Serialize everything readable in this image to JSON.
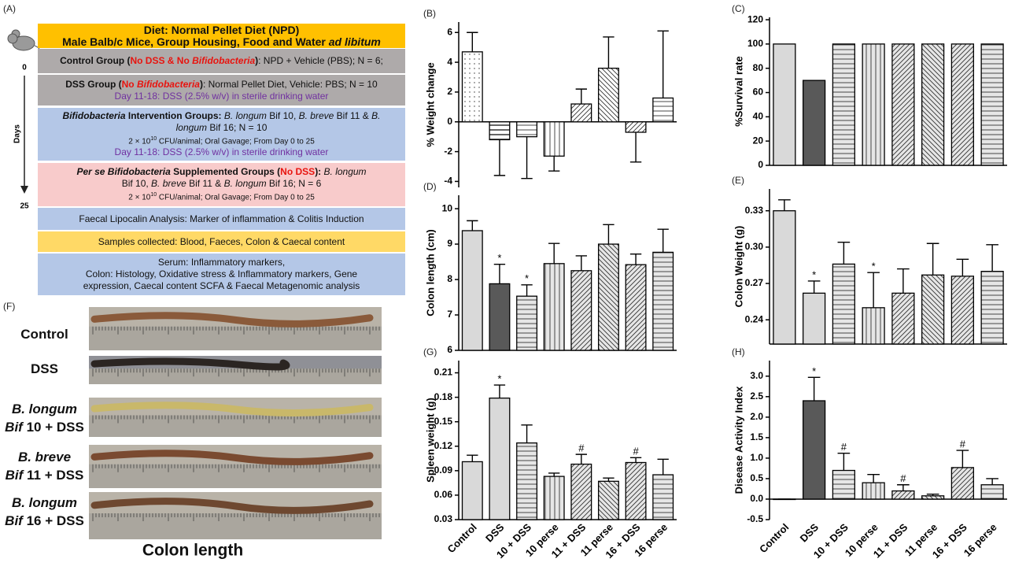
{
  "panel_a": {
    "label": "(A)",
    "timeline": {
      "start": "0",
      "axis": "Days",
      "end": "25"
    },
    "boxes": [
      {
        "color": "#ffc000",
        "lines": [
          [
            {
              "text": "Diet: Normal Pellet Diet (NPD)",
              "style": "b"
            }
          ],
          [
            {
              "text": "Male Balb/c Mice, Group Housing, Food and Water ",
              "style": "b"
            },
            {
              "text": "ad libitum",
              "style": "bi"
            }
          ]
        ]
      },
      {
        "color": "#aeaaaa",
        "lines": [
          [
            {
              "text": "Control Group (",
              "style": "b"
            },
            {
              "text": "No DSS & No ",
              "style": "red"
            },
            {
              "text": "Bifidobacteria",
              "style": "red i"
            },
            {
              "text": ")",
              "style": "b"
            },
            ": NPD + Vehicle (PBS); N = 6;"
          ]
        ]
      },
      {
        "color": "#aeaaaa",
        "lines": [
          [
            {
              "text": "DSS Group (",
              "style": "b"
            },
            {
              "text": "No ",
              "style": "red"
            },
            {
              "text": "Bifidobacteria",
              "style": "red i"
            },
            {
              "text": ")",
              "style": "b"
            },
            ": Normal Pellet Diet, Vehicle: PBS; N = 10"
          ],
          [
            {
              "text": "Day 11-18: DSS (2.5% w/v) in sterile drinking water",
              "style": "purple"
            }
          ]
        ]
      },
      {
        "color": "#b4c7e7",
        "lines": [
          [
            {
              "text": "Bifidobacteria",
              "style": "bi"
            },
            {
              "text": " Intervention Groups: ",
              "style": "b"
            },
            {
              "text": "B. longum",
              "style": "i"
            },
            " Bif 10, ",
            {
              "text": "B. breve",
              "style": "i"
            },
            " Bif 11 & ",
            {
              "text": "B.",
              "style": "i"
            }
          ],
          [
            {
              "text": "longum",
              "style": "i"
            },
            " Bif 16; N = 10"
          ],
          [
            "2 × 10",
            {
              "text": "10",
              "style": "sup"
            },
            " CFU/animal; Oral Gavage; From Day 0 to 25"
          ],
          [
            {
              "text": "Day 11-18: DSS (2.5% w/v) in sterile drinking water",
              "style": "purple"
            }
          ]
        ]
      },
      {
        "color": "#f8cbcb",
        "lines": [
          [
            {
              "text": "Per se Bifidobacteria",
              "style": "bi"
            },
            {
              "text": " Supplemented Groups (",
              "style": "b"
            },
            {
              "text": "No DSS",
              "style": "red"
            },
            {
              "text": "): ",
              "style": "b"
            },
            {
              "text": "B. longum",
              "style": "i"
            }
          ],
          [
            "Bif 10, ",
            {
              "text": "B. breve",
              "style": "i"
            },
            " Bif 11 & ",
            {
              "text": "B. longum",
              "style": "i"
            },
            " Bif 16; N = 6"
          ],
          [
            "2 × 10",
            {
              "text": "10",
              "style": "sup"
            },
            " CFU/animal; Oral Gavage; From Day 0 to 25"
          ]
        ]
      },
      {
        "color": "#b4c7e7",
        "lines": [
          [
            "Faecal Lipocalin Analysis: Marker of inflammation & Colitis Induction"
          ]
        ]
      },
      {
        "color": "#ffd966",
        "lines": [
          [
            "Samples collected: Blood, Faeces, Colon & Caecal content"
          ]
        ]
      },
      {
        "color": "#b4c7e7",
        "lines": [
          [
            "Serum: Inflammatory markers,"
          ],
          [
            "Colon: Histology, Oxidative stress & Inflammatory markers, Gene"
          ],
          [
            "expression, Caecal content SCFA & Faecal Metagenomic analysis"
          ]
        ]
      }
    ]
  },
  "panel_f": {
    "label": "(F)",
    "caption": "Colon length",
    "rows": [
      [
        [
          "Control"
        ]
      ],
      [
        [
          "DSS"
        ]
      ],
      [
        [
          {
            "text": "B. longum",
            "style": "i"
          }
        ],
        [
          {
            "text": "Bif",
            "style": "i"
          },
          " 10 + DSS"
        ]
      ],
      [
        [
          {
            "text": "B. breve",
            "style": "i"
          }
        ],
        [
          {
            "text": "Bif",
            "style": "i"
          },
          " 11 + DSS"
        ]
      ],
      [
        [
          {
            "text": "B. longum",
            "style": "i"
          }
        ],
        [
          {
            "text": "Bif",
            "style": "i"
          },
          " 16 + DSS"
        ]
      ]
    ]
  },
  "chart_data": [
    {
      "type": "bar",
      "label": "(B)",
      "y_label": "% Weight change",
      "ylim": [
        -4.4,
        6.7
      ],
      "yticks": [
        -4,
        -2,
        0,
        2,
        4,
        6
      ],
      "values": [
        4.7,
        -1.2,
        -1.0,
        -2.3,
        1.2,
        3.6,
        -0.7,
        1.6
      ],
      "errors": [
        1.3,
        2.4,
        2.8,
        1.0,
        1.0,
        2.1,
        2.0,
        4.5
      ],
      "colors": [
        "#ffffff",
        "#ffffff",
        "#ffffff",
        "#ffffff",
        "#ffffff",
        "#ffffff",
        "#ffffff",
        "#ffffff"
      ]
    },
    {
      "type": "bar",
      "label": "(C)",
      "y_label": "%Survival rate",
      "ylim": [
        0,
        122
      ],
      "yticks": [
        0,
        20,
        40,
        60,
        80,
        100,
        120
      ],
      "values": [
        100,
        70,
        100,
        100,
        100,
        100,
        100,
        100
      ],
      "colors": [
        "#d9d9d9",
        "#595959",
        "#e6e6e6",
        "#e6e6e6",
        "#e6e6e6",
        "#e6e6e6",
        "#e6e6e6",
        "#e6e6e6"
      ]
    },
    {
      "type": "bar",
      "label": "(D)",
      "y_label": "Colon length (cm)",
      "ylim": [
        6,
        10.38
      ],
      "yticks": [
        6,
        7,
        8,
        9,
        10
      ],
      "values": [
        9.38,
        7.88,
        7.53,
        8.45,
        8.25,
        9.0,
        8.42,
        8.77
      ],
      "errors": [
        0.28,
        0.55,
        0.32,
        0.57,
        0.42,
        0.55,
        0.3,
        0.65
      ],
      "markers": [
        null,
        "*",
        "*",
        null,
        null,
        null,
        null,
        null
      ],
      "colors": [
        "#d9d9d9",
        "#595959",
        "#e6e6e6",
        "#e6e6e6",
        "#e6e6e6",
        "#e6e6e6",
        "#e6e6e6",
        "#e6e6e6"
      ]
    },
    {
      "type": "bar",
      "label": "(E)",
      "y_label": "Colon Weight (g)",
      "ylim": [
        0.22,
        0.348
      ],
      "yticks": [
        0.24,
        0.27,
        {
          "value": 0.3,
          "label": "0.30"
        },
        0.33
      ],
      "values": [
        0.33,
        0.262,
        0.286,
        0.25,
        0.262,
        0.277,
        0.276,
        0.28
      ],
      "errors": [
        0.009,
        0.01,
        0.018,
        0.029,
        0.02,
        0.026,
        0.014,
        0.022
      ],
      "markers": [
        null,
        "*",
        null,
        "*",
        null,
        null,
        null,
        null
      ],
      "colors": [
        "#d9d9d9",
        "#d9d9d9",
        "#e6e6e6",
        "#e6e6e6",
        "#e6e6e6",
        "#e6e6e6",
        "#e6e6e6",
        "#e6e6e6"
      ]
    },
    {
      "type": "bar",
      "label": "(G)",
      "y_label": "Spleen weight (g)",
      "ylim": [
        0.03,
        0.225
      ],
      "yticks": [
        0.03,
        0.06,
        0.09,
        0.12,
        0.15,
        0.18,
        0.21
      ],
      "categories": [
        "Control",
        "DSS",
        "10 + DSS",
        "10 perse",
        "11 + DSS",
        "11 perse",
        "16 + DSS",
        "16 perse"
      ],
      "values": [
        0.101,
        0.179,
        0.124,
        0.083,
        0.098,
        0.077,
        0.1,
        0.085
      ],
      "errors": [
        0.008,
        0.016,
        0.022,
        0.004,
        0.012,
        0.004,
        0.006,
        0.019
      ],
      "markers": [
        null,
        "*",
        null,
        null,
        "#",
        null,
        "#",
        null
      ],
      "colors": [
        "#d9d9d9",
        "#d9d9d9",
        "#e6e6e6",
        "#e6e6e6",
        "#e6e6e6",
        "#e6e6e6",
        "#e6e6e6",
        "#e6e6e6"
      ]
    },
    {
      "type": "bar",
      "label": "(H)",
      "y_label": "Disease Activity Index",
      "ylim": [
        -0.5,
        3.38
      ],
      "yticks": [
        -0.5,
        {
          "value": 0,
          "label": "0.0"
        },
        0.5,
        {
          "value": 1,
          "label": "1.0"
        },
        1.5,
        {
          "value": 2,
          "label": "2.0"
        },
        2.5,
        {
          "value": 3,
          "label": "3.0"
        }
      ],
      "categories": [
        "Control",
        "DSS",
        "10 + DSS",
        "10 perse",
        "11 + DSS",
        "11 perse",
        "16 + DSS",
        "16 perse"
      ],
      "values": [
        0,
        2.4,
        0.7,
        0.4,
        0.2,
        0.08,
        0.77,
        0.35
      ],
      "errors": [
        0,
        0.57,
        0.42,
        0.2,
        0.15,
        0.04,
        0.42,
        0.15
      ],
      "markers": [
        null,
        "*",
        "#",
        null,
        "#",
        null,
        "#",
        null
      ],
      "colors": [
        "#d9d9d9",
        "#595959",
        "#e6e6e6",
        "#e6e6e6",
        "#e6e6e6",
        "#e6e6e6",
        "#e6e6e6",
        "#e6e6e6"
      ]
    }
  ]
}
